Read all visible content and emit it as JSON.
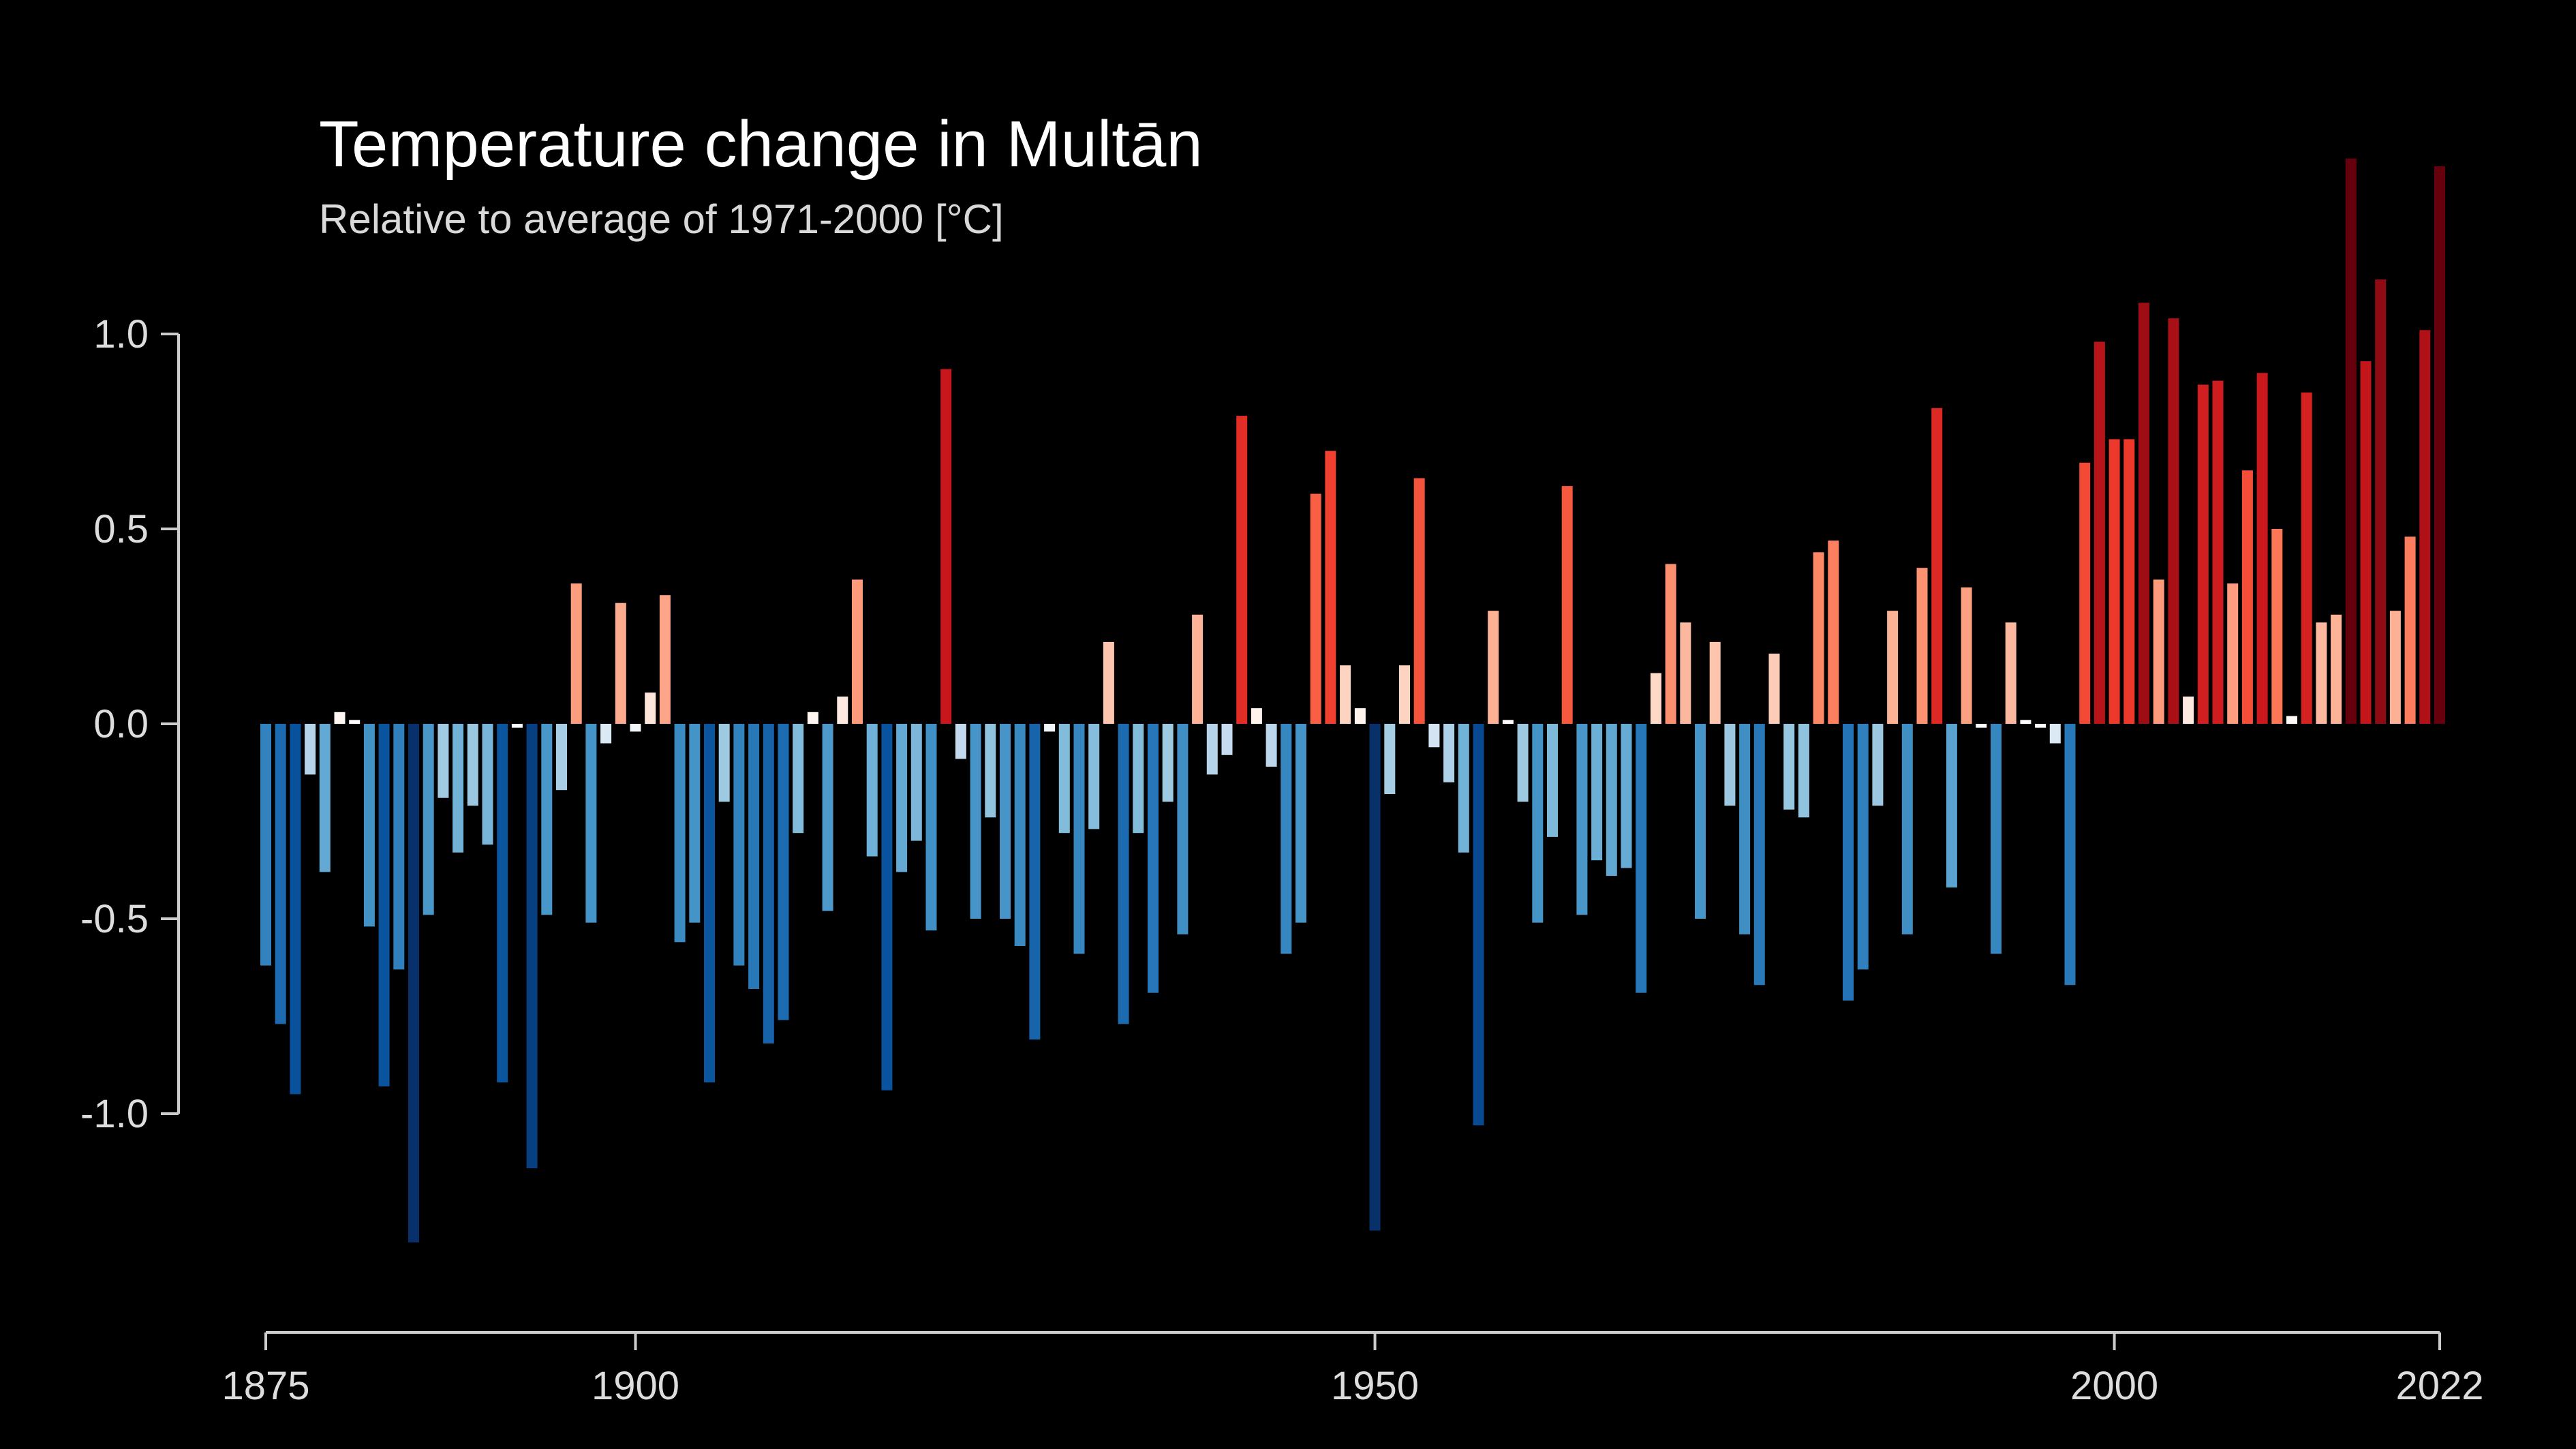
{
  "chart_data": {
    "type": "bar",
    "title": "Temperature change in Multān",
    "subtitle": "Relative to average of 1971-2000  [°C]",
    "xlabel": "",
    "ylabel": "",
    "x_start": 1875,
    "x_end": 2022,
    "xlim": [
      1875,
      2022
    ],
    "ylim": [
      -1.55,
      1.55
    ],
    "y_ticks": [
      1.0,
      0.5,
      0.0,
      -0.5,
      -1.0
    ],
    "y_tick_labels": [
      "1.0",
      "0.5",
      "0.0",
      "-0.5",
      "-1.0"
    ],
    "x_ticks": [
      1875,
      1900,
      1950,
      2000,
      2022
    ],
    "x_tick_labels": [
      "1875",
      "1900",
      "1950",
      "2000",
      "2022"
    ],
    "grid": false,
    "legend": "none",
    "colors": {
      "background": "#000000",
      "cold_extreme": "#08306b",
      "neutral": "#ffffff",
      "warm_extreme": "#67000d"
    },
    "categories": [
      "1875",
      "1876",
      "1877",
      "1878",
      "1879",
      "1880",
      "1881",
      "1882",
      "1883",
      "1884",
      "1885",
      "1886",
      "1887",
      "1888",
      "1889",
      "1890",
      "1891",
      "1892",
      "1893",
      "1894",
      "1895",
      "1896",
      "1897",
      "1898",
      "1899",
      "1900",
      "1901",
      "1902",
      "1903",
      "1904",
      "1905",
      "1906",
      "1907",
      "1908",
      "1909",
      "1910",
      "1911",
      "1912",
      "1913",
      "1914",
      "1915",
      "1916",
      "1917",
      "1918",
      "1919",
      "1920",
      "1921",
      "1922",
      "1923",
      "1924",
      "1925",
      "1926",
      "1927",
      "1928",
      "1929",
      "1930",
      "1931",
      "1932",
      "1933",
      "1934",
      "1935",
      "1936",
      "1937",
      "1938",
      "1939",
      "1940",
      "1941",
      "1942",
      "1943",
      "1944",
      "1945",
      "1946",
      "1947",
      "1948",
      "1949",
      "1950",
      "1951",
      "1952",
      "1953",
      "1954",
      "1955",
      "1956",
      "1957",
      "1958",
      "1959",
      "1960",
      "1961",
      "1962",
      "1963",
      "1964",
      "1965",
      "1966",
      "1967",
      "1968",
      "1969",
      "1970",
      "1971",
      "1972",
      "1973",
      "1974",
      "1975",
      "1976",
      "1977",
      "1978",
      "1979",
      "1980",
      "1981",
      "1982",
      "1983",
      "1984",
      "1985",
      "1986",
      "1987",
      "1988",
      "1989",
      "1990",
      "1991",
      "1992",
      "1993",
      "1994",
      "1995",
      "1996",
      "1997",
      "1998",
      "1999",
      "2000",
      "2001",
      "2002",
      "2003",
      "2004",
      "2005",
      "2006",
      "2007",
      "2008",
      "2009",
      "2010",
      "2011",
      "2012",
      "2013",
      "2014",
      "2015",
      "2016",
      "2017",
      "2018",
      "2019",
      "2020",
      "2021",
      "2022"
    ],
    "values": [
      -0.62,
      -0.77,
      -0.95,
      -0.13,
      -0.38,
      0.03,
      0.01,
      -0.52,
      -0.93,
      -0.63,
      -1.33,
      -0.49,
      -0.19,
      -0.33,
      -0.21,
      -0.31,
      -0.92,
      -0.01,
      -1.14,
      -0.49,
      -0.17,
      0.36,
      -0.51,
      -0.05,
      0.31,
      -0.02,
      0.08,
      0.33,
      -0.56,
      -0.51,
      -0.92,
      -0.2,
      -0.62,
      -0.68,
      -0.82,
      -0.76,
      -0.28,
      0.03,
      -0.48,
      0.07,
      0.37,
      -0.34,
      -0.94,
      -0.38,
      -0.3,
      -0.53,
      0.91,
      -0.09,
      -0.5,
      -0.24,
      -0.5,
      -0.57,
      -0.81,
      -0.02,
      -0.28,
      -0.59,
      -0.27,
      0.21,
      -0.77,
      -0.28,
      -0.69,
      -0.2,
      -0.54,
      0.28,
      -0.13,
      -0.08,
      0.79,
      0.04,
      -0.11,
      -0.59,
      -0.51,
      0.59,
      0.7,
      0.15,
      0.04,
      -1.3,
      -0.18,
      0.15,
      0.63,
      -0.06,
      -0.15,
      -0.33,
      -1.03,
      0.29,
      0.01,
      -0.2,
      -0.51,
      -0.29,
      0.61,
      -0.49,
      -0.35,
      -0.39,
      -0.37,
      -0.69,
      0.13,
      0.41,
      0.26,
      -0.5,
      0.21,
      -0.21,
      -0.54,
      -0.67,
      0.18,
      -0.22,
      -0.24,
      0.44,
      0.47,
      -0.71,
      -0.63,
      -0.21,
      0.29,
      -0.54,
      0.4,
      0.81,
      -0.42,
      0.35,
      -0.01,
      -0.59,
      0.26,
      0.01,
      -0.01,
      -0.05,
      -0.67,
      0.67,
      0.98,
      0.73,
      0.73,
      1.08,
      0.37,
      1.04,
      0.07,
      0.87,
      0.88,
      0.36,
      0.65,
      0.9,
      0.5,
      0.02,
      0.85,
      0.26,
      0.28,
      1.45,
      0.93,
      1.14,
      0.29,
      0.48,
      1.01,
      1.43
    ]
  }
}
